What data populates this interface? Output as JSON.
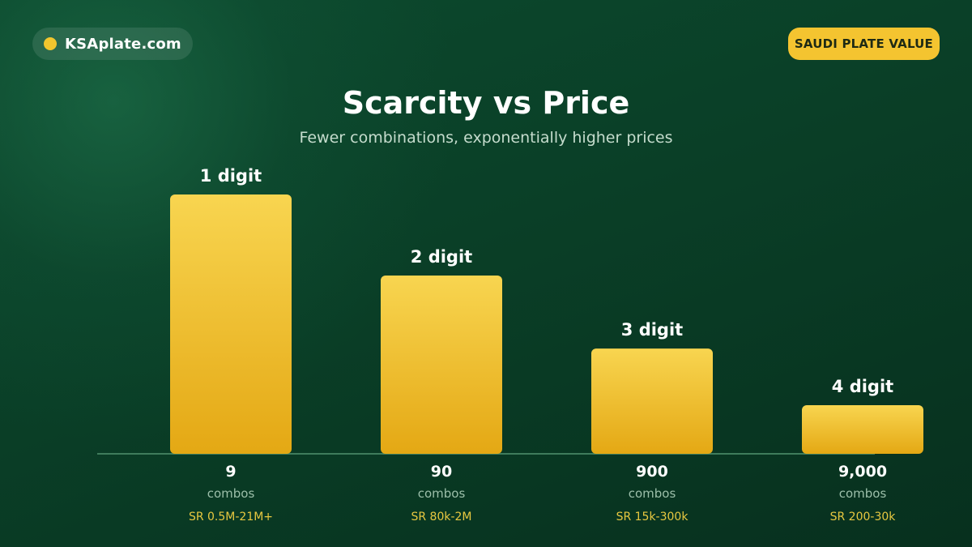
{
  "brand": {
    "name": "KSAplate.com",
    "dot_color": "#f2c62e"
  },
  "badge": {
    "label": "SAUDI PLATE VALUE",
    "color": "#f4c430"
  },
  "chart_data": {
    "type": "bar",
    "title": "Scarcity vs Price",
    "subtitle": "Fewer combinations, exponentially higher prices",
    "categories": [
      "1 digit",
      "2 digit",
      "3 digit",
      "4 digit"
    ],
    "combos_text": [
      "9",
      "90",
      "900",
      "9,000"
    ],
    "combos": [
      9,
      90,
      900,
      9000
    ],
    "unit_label": "combos",
    "price_ranges": [
      "SR 0.5M-21M+",
      "SR 80k-2M",
      "SR 15k-300k",
      "SR 200-30k"
    ],
    "values": [
      100,
      68.75,
      40.6,
      18.75
    ],
    "ylim": [
      0,
      100
    ],
    "grid": false,
    "legend": "none",
    "colors": {
      "bar_top": "#f8d550",
      "bar_bottom": "#e4a814",
      "axis": "#3f7c5c"
    }
  }
}
